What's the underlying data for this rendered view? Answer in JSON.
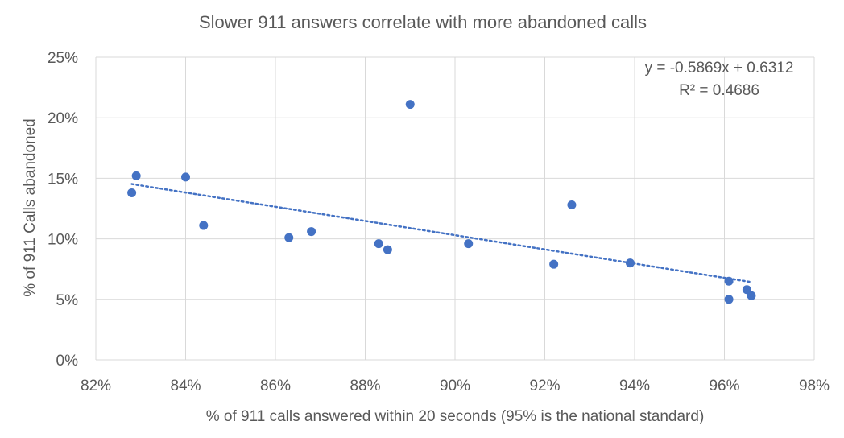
{
  "chart_data": {
    "type": "scatter",
    "title": "Slower 911 answers correlate with more abandoned calls",
    "xlabel": "% of 911 calls answered within 20 seconds (95% is the national standard)",
    "ylabel": "% of 911 Calls abandoned",
    "xlim": [
      0.82,
      0.98
    ],
    "ylim": [
      0,
      0.25
    ],
    "grid": true,
    "x_ticks": [
      0.82,
      0.84,
      0.86,
      0.88,
      0.9,
      0.92,
      0.94,
      0.96,
      0.98
    ],
    "y_ticks": [
      0,
      0.05,
      0.1,
      0.15,
      0.2,
      0.25
    ],
    "x_tick_labels": [
      "82%",
      "84%",
      "86%",
      "88%",
      "90%",
      "92%",
      "94%",
      "96%",
      "98%"
    ],
    "y_tick_labels": [
      "0%",
      "5%",
      "10%",
      "15%",
      "20%",
      "25%"
    ],
    "series": [
      {
        "color": "#4472C4",
        "points": [
          {
            "x": 0.828,
            "y": 0.138
          },
          {
            "x": 0.829,
            "y": 0.152
          },
          {
            "x": 0.84,
            "y": 0.151
          },
          {
            "x": 0.844,
            "y": 0.111
          },
          {
            "x": 0.863,
            "y": 0.101
          },
          {
            "x": 0.868,
            "y": 0.106
          },
          {
            "x": 0.883,
            "y": 0.096
          },
          {
            "x": 0.885,
            "y": 0.091
          },
          {
            "x": 0.89,
            "y": 0.211
          },
          {
            "x": 0.903,
            "y": 0.096
          },
          {
            "x": 0.922,
            "y": 0.079
          },
          {
            "x": 0.926,
            "y": 0.128
          },
          {
            "x": 0.939,
            "y": 0.08
          },
          {
            "x": 0.961,
            "y": 0.065
          },
          {
            "x": 0.961,
            "y": 0.05
          },
          {
            "x": 0.965,
            "y": 0.058
          },
          {
            "x": 0.966,
            "y": 0.053
          }
        ]
      }
    ],
    "trendline": {
      "type": "linear",
      "style": "dotted",
      "color": "#4472C4",
      "slope": -0.5869,
      "intercept": 0.6312,
      "x_range": [
        0.828,
        0.966
      ],
      "equation_label": "y = -0.5869x + 0.6312",
      "r2_label": "R² = 0.4686"
    }
  }
}
